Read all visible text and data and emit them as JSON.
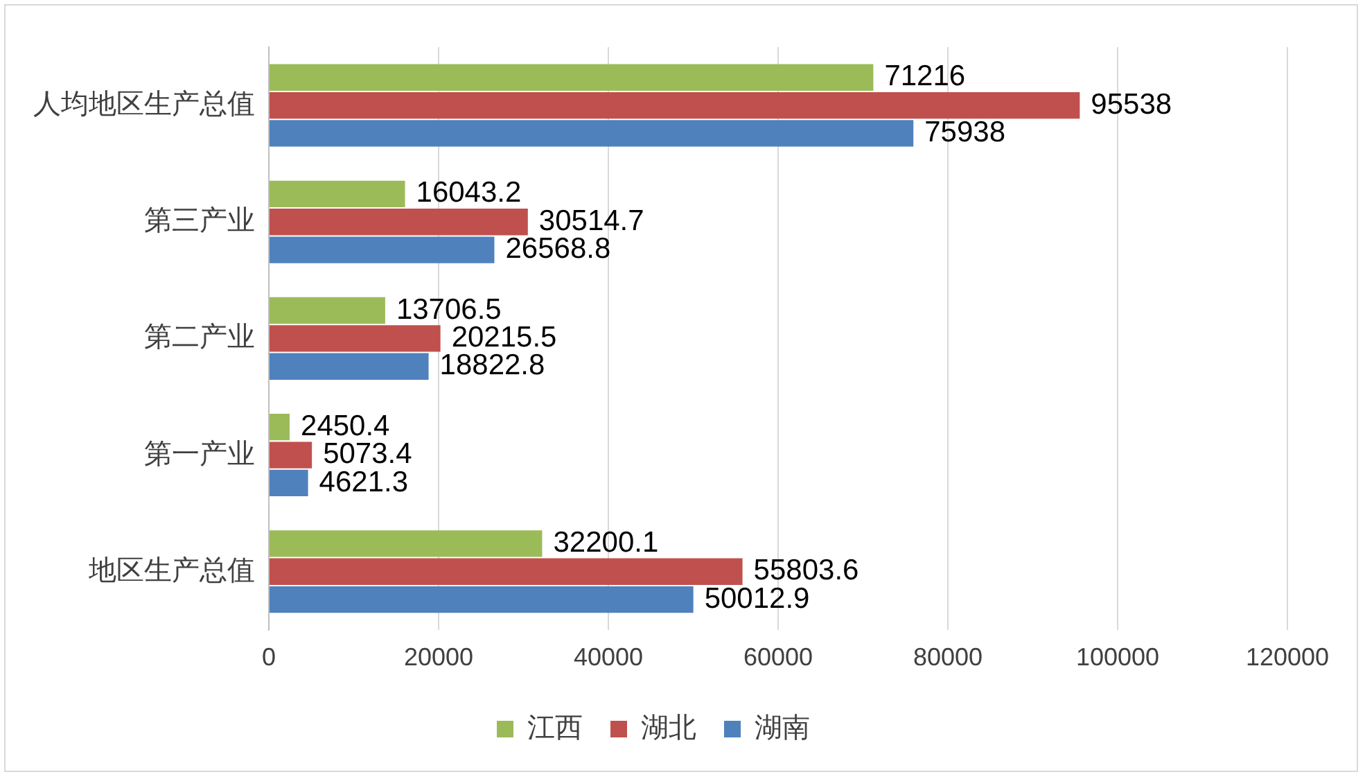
{
  "chart_data": {
    "type": "bar",
    "orientation": "horizontal",
    "categories": [
      "人均地区生产总值",
      "第三产业",
      "第二产业",
      "第一产业",
      "地区生产总值"
    ],
    "series": [
      {
        "name": "江西",
        "color": "#9bbb59",
        "values": [
          71216,
          16043.2,
          13706.5,
          2450.4,
          32200.1
        ]
      },
      {
        "name": "湖北",
        "color": "#c0504d",
        "values": [
          95538,
          30514.7,
          20215.5,
          5073.4,
          55803.6
        ]
      },
      {
        "name": "湖南",
        "color": "#4f81bd",
        "values": [
          75938,
          26568.8,
          18822.8,
          4621.3,
          50012.9
        ]
      }
    ],
    "xlim": [
      0,
      120000
    ],
    "xticks": [
      0,
      20000,
      40000,
      60000,
      80000,
      100000,
      120000
    ],
    "grid": "x",
    "legend": "bottom",
    "data_labels": true
  }
}
